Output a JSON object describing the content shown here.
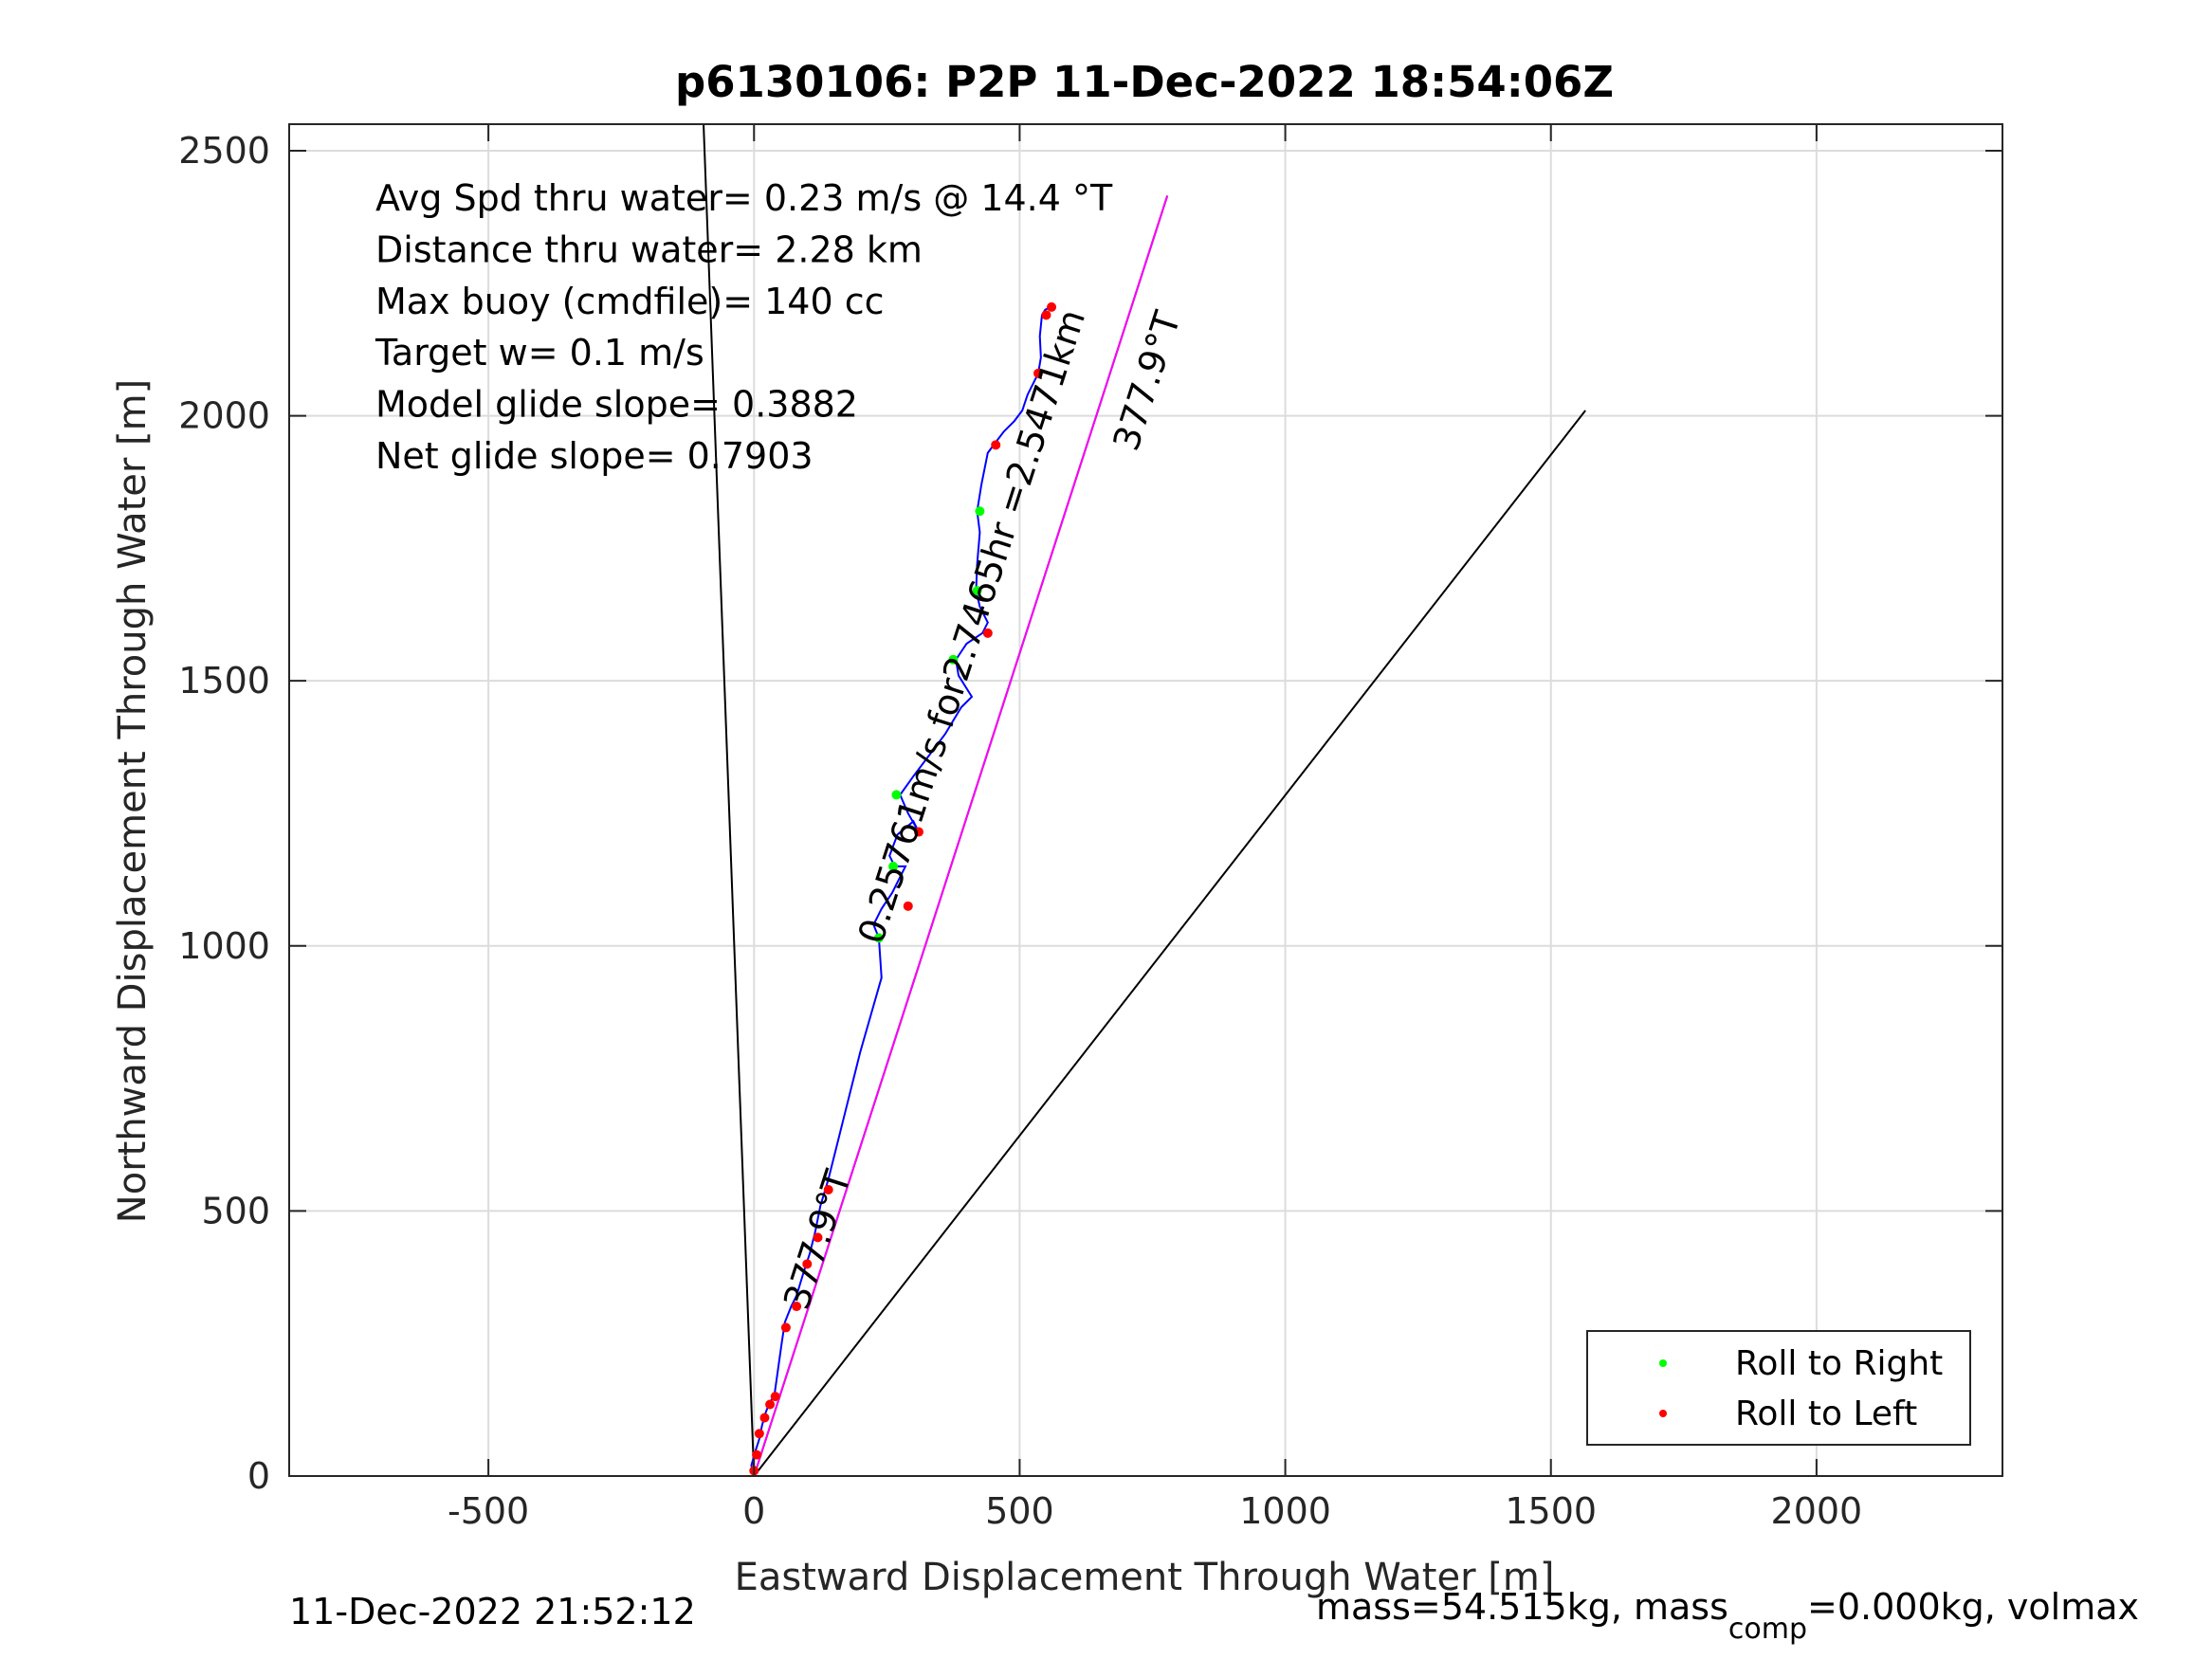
{
  "chart_data": {
    "type": "line",
    "title": "p6130106: P2P 11-Dec-2022 18:54:06Z",
    "xlabel": "Eastward Displacement Through Water [m]",
    "ylabel": "Northward Displacement Through Water [m]",
    "xlim": [
      -875,
      2350
    ],
    "ylim": [
      0,
      2550
    ],
    "xticks": [
      -500,
      0,
      500,
      1000,
      1500,
      2000
    ],
    "yticks": [
      0,
      500,
      1000,
      1500,
      2000,
      2500
    ],
    "grid": true,
    "annotations": [
      "Avg Spd thru water=  0.23 m/s @  14.4 °T",
      "Distance thru water=  2.28 km",
      "Max buoy (cmdfile)= 140 cc",
      "Target w= 0.1 m/s",
      "Model glide slope= 0.3882",
      "Net glide slope= 0.7903"
    ],
    "direction_labels": [
      {
        "text": "377.9°T",
        "x": 100,
        "y": 310
      },
      {
        "text": "377.9°T",
        "x": 720,
        "y": 1930
      },
      {
        "text": "0.25761m/s for2.7465hr =2.5471km",
        "x": 240,
        "y": 1000
      }
    ],
    "reference_lines": [
      {
        "color": "#000000",
        "x": [
          0,
          -95
        ],
        "y": [
          0,
          2550
        ]
      },
      {
        "color": "#000000",
        "x": [
          0,
          778
        ],
        "y": [
          0,
          2415
        ]
      },
      {
        "color": "#000000",
        "x": [
          0,
          1565
        ],
        "y": [
          0,
          2010
        ]
      },
      {
        "color": "#ff00ff",
        "x": [
          0,
          778
        ],
        "y": [
          0,
          2415
        ]
      }
    ],
    "track": {
      "color": "#0000ff",
      "x": [
        0,
        -5,
        2,
        10,
        15,
        22,
        30,
        38,
        45,
        52,
        58,
        62,
        70,
        80,
        92,
        105,
        115,
        125,
        140,
        160,
        180,
        200,
        220,
        240,
        235,
        225,
        240,
        260,
        275,
        285,
        265,
        255,
        270,
        300,
        310,
        290,
        275,
        300,
        330,
        360,
        390,
        410,
        385,
        380,
        400,
        430,
        440,
        425,
        418,
        420,
        425,
        420,
        428,
        440,
        455,
        470,
        490,
        505,
        515,
        525,
        535,
        540,
        538,
        542,
        548,
        558
      ],
      "y": [
        0,
        20,
        45,
        70,
        95,
        120,
        140,
        150,
        200,
        250,
        290,
        300,
        320,
        340,
        380,
        420,
        460,
        510,
        560,
        640,
        720,
        800,
        870,
        940,
        1015,
        1040,
        1070,
        1100,
        1130,
        1150,
        1150,
        1170,
        1210,
        1235,
        1215,
        1250,
        1285,
        1320,
        1360,
        1400,
        1450,
        1470,
        1510,
        1540,
        1570,
        1590,
        1610,
        1640,
        1670,
        1720,
        1780,
        1820,
        1870,
        1930,
        1950,
        1970,
        1990,
        2010,
        2040,
        2060,
        2080,
        2110,
        2150,
        2190,
        2200,
        2205
      ]
    },
    "series": [
      {
        "name": "Roll to Right",
        "color": "#00ff00",
        "x": [
          235,
          262,
          268,
          375,
          420,
          425
        ],
        "y": [
          1015,
          1150,
          1285,
          1540,
          1670,
          1820
        ]
      },
      {
        "name": "Roll to Left",
        "color": "#ff0000",
        "x": [
          0,
          5,
          10,
          20,
          30,
          40,
          60,
          80,
          100,
          120,
          140,
          290,
          310,
          440,
          455,
          535,
          550,
          560
        ],
        "y": [
          10,
          40,
          80,
          110,
          135,
          150,
          280,
          320,
          400,
          450,
          540,
          1075,
          1215,
          1590,
          1945,
          2080,
          2190,
          2205
        ]
      }
    ],
    "legend": {
      "placement": "bottom-right",
      "entries": [
        "Roll to Right",
        "Roll to Left"
      ]
    }
  },
  "footer": {
    "timestamp": "11-Dec-2022 21:52:12",
    "mass_prefix": "mass=54.515kg, mass",
    "mass_sub": "comp",
    "mass_suffix": "=0.000kg, volmax"
  }
}
